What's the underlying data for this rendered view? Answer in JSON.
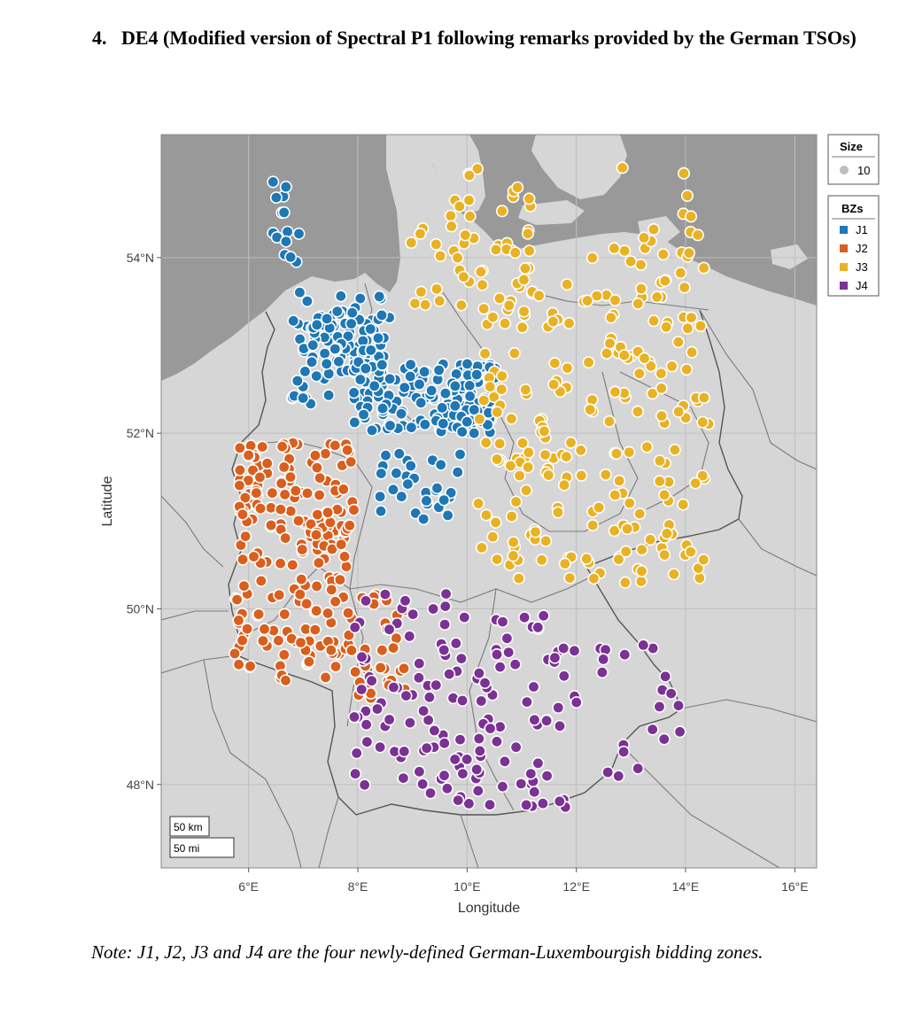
{
  "heading": {
    "number": "4.",
    "text": "DE4 (Modified version of Spectral P1 following remarks provided by the German TSOs)"
  },
  "map": {
    "x_label": "Longitude",
    "y_label": "Latitude",
    "x_ticks": [
      "6°E",
      "8°E",
      "10°E",
      "12°E",
      "14°E",
      "16°E"
    ],
    "x_tick_values": [
      6,
      8,
      10,
      12,
      14,
      16
    ],
    "y_ticks": [
      "48°N",
      "50°N",
      "52°N",
      "54°N"
    ],
    "y_tick_values": [
      48,
      50,
      52,
      54
    ],
    "lon_range": [
      4.4,
      16.4
    ],
    "lat_range": [
      47.05,
      55.4
    ],
    "scale_km": "50 km",
    "scale_mi": "50 mi",
    "legend_size_title": "Size",
    "legend_size_value": "10",
    "legend_bz_title": "BZs",
    "zones": [
      {
        "label": "J1",
        "color": "#1f77b4"
      },
      {
        "label": "J2",
        "color": "#d95f1e"
      },
      {
        "label": "J3",
        "color": "#e8b224"
      },
      {
        "label": "J4",
        "color": "#7b3294"
      }
    ],
    "colors": {
      "sea": "#999999",
      "land": "#d6d6d6",
      "border": "#6a6a6a",
      "grid": "#bfbfbf"
    }
  },
  "note": "Note: J1, J2, J3 and J4 are the four newly-defined German-Luxembourgish bidding zones."
}
